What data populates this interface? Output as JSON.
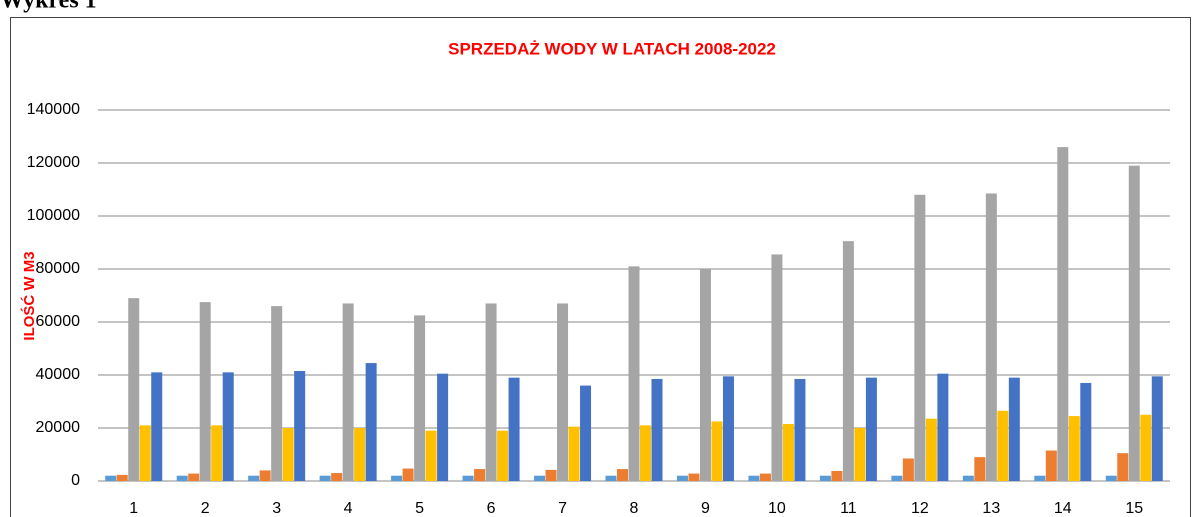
{
  "heading": "Wykres 1",
  "chart_data": {
    "type": "bar",
    "title": "SPRZEDAŻ WODY W LATACH 2008-2022",
    "y_label": "ILOŚĆ W M3",
    "categories": [
      "1",
      "2",
      "3",
      "4",
      "5",
      "6",
      "7",
      "8",
      "9",
      "10",
      "11",
      "12",
      "13",
      "14",
      "15"
    ],
    "series": [
      {
        "color": "#5b9bd5",
        "values": [
          2000,
          2000,
          2000,
          2000,
          2000,
          2000,
          2000,
          2000,
          2000,
          2000,
          2000,
          2000,
          2000,
          2000,
          2000
        ]
      },
      {
        "color": "#ed7d31",
        "values": [
          2300,
          2800,
          4000,
          3000,
          4700,
          4500,
          4200,
          4500,
          2800,
          2800,
          3800,
          8500,
          9000,
          11500,
          10500
        ]
      },
      {
        "color": "#a5a5a5",
        "values": [
          69000,
          67500,
          66000,
          67000,
          62500,
          67000,
          67000,
          81000,
          80000,
          85500,
          90500,
          108000,
          108500,
          126000,
          119000
        ]
      },
      {
        "color": "#ffc000",
        "values": [
          21000,
          21000,
          20000,
          20000,
          19000,
          19000,
          20500,
          21000,
          22500,
          21500,
          20000,
          23500,
          26500,
          24500,
          25000
        ]
      },
      {
        "color": "#4472c4",
        "values": [
          41000,
          41000,
          41500,
          44500,
          40500,
          39000,
          36000,
          38500,
          39500,
          38500,
          39000,
          40500,
          39000,
          37000,
          39500
        ]
      }
    ],
    "ylim": [
      0,
      140000
    ],
    "yticks": [
      0,
      20000,
      40000,
      60000,
      80000,
      100000,
      120000,
      140000
    ],
    "grid": true
  }
}
